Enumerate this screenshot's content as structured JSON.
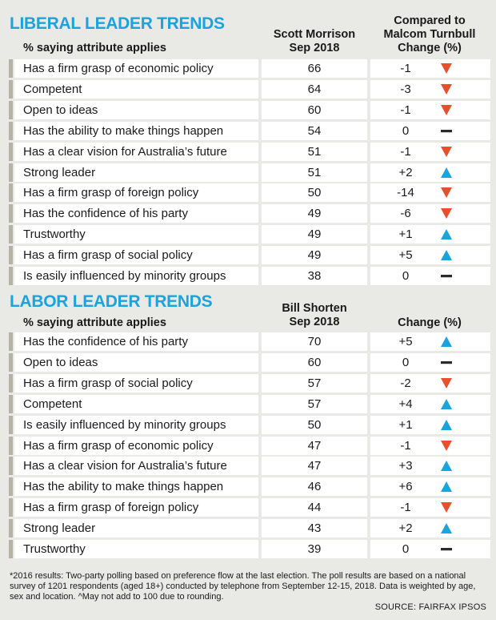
{
  "chart_data": [
    {
      "type": "table",
      "title": "LIBERAL LEADER TRENDS",
      "subtitle": "% saying attribute applies",
      "value_header_1": "Scott Morrison",
      "value_header_2": "Sep 2018",
      "change_header_1": "Compared to",
      "change_header_2": "Malcom Turnbull",
      "change_header_3": "Change (%)",
      "rows": [
        {
          "attribute": "Has a firm grasp of economic policy",
          "value": 66,
          "change": "-1",
          "dir": "down"
        },
        {
          "attribute": "Competent",
          "value": 64,
          "change": "-3",
          "dir": "down"
        },
        {
          "attribute": "Open to ideas",
          "value": 60,
          "change": "-1",
          "dir": "down"
        },
        {
          "attribute": "Has the ability to make things happen",
          "value": 54,
          "change": "0",
          "dir": "flat"
        },
        {
          "attribute": "Has a clear vision for Australia’s future",
          "value": 51,
          "change": "-1",
          "dir": "down"
        },
        {
          "attribute": "Strong leader",
          "value": 51,
          "change": "+2",
          "dir": "up"
        },
        {
          "attribute": "Has a firm grasp of foreign policy",
          "value": 50,
          "change": "-14",
          "dir": "down"
        },
        {
          "attribute": "Has the confidence of his party",
          "value": 49,
          "change": "-6",
          "dir": "down"
        },
        {
          "attribute": "Trustworthy",
          "value": 49,
          "change": "+1",
          "dir": "up"
        },
        {
          "attribute": "Has a firm grasp of social policy",
          "value": 49,
          "change": "+5",
          "dir": "up"
        },
        {
          "attribute": "Is easily influenced by minority groups",
          "value": 38,
          "change": "0",
          "dir": "flat"
        }
      ]
    },
    {
      "type": "table",
      "title": "LABOR LEADER TRENDS",
      "subtitle": "% saying attribute applies",
      "value_header_1": "Bill Shorten",
      "value_header_2": "Sep 2018",
      "change_header_1": "",
      "change_header_2": "",
      "change_header_3": "Change (%)",
      "rows": [
        {
          "attribute": "Has the confidence of his party",
          "value": 70,
          "change": "+5",
          "dir": "up"
        },
        {
          "attribute": "Open to ideas",
          "value": 60,
          "change": "0",
          "dir": "flat"
        },
        {
          "attribute": "Has a firm grasp of social policy",
          "value": 57,
          "change": "-2",
          "dir": "down"
        },
        {
          "attribute": "Competent",
          "value": 57,
          "change": "+4",
          "dir": "up"
        },
        {
          "attribute": "Is easily influenced by minority groups",
          "value": 50,
          "change": "+1",
          "dir": "up"
        },
        {
          "attribute": "Has a firm grasp of economic policy",
          "value": 47,
          "change": "-1",
          "dir": "down"
        },
        {
          "attribute": "Has a clear vision for Australia’s future",
          "value": 47,
          "change": "+3",
          "dir": "up"
        },
        {
          "attribute": "Has the ability to make things happen",
          "value": 46,
          "change": "+6",
          "dir": "up"
        },
        {
          "attribute": "Has a firm grasp of foreign policy",
          "value": 44,
          "change": "-1",
          "dir": "down"
        },
        {
          "attribute": "Strong leader",
          "value": 43,
          "change": "+2",
          "dir": "up"
        },
        {
          "attribute": "Trustworthy",
          "value": 39,
          "change": "0",
          "dir": "flat"
        }
      ]
    }
  ],
  "colors": {
    "title": "#1aa3dd",
    "up": "#1aa3dd",
    "down": "#e8502d",
    "flat": "#2a2a2a",
    "row_bar": "#b5b3a6",
    "background": "#e9e9e6"
  },
  "icons": {
    "up": "triangle-up-icon",
    "down": "triangle-down-icon",
    "flat": "dash-icon"
  },
  "footnote": "*2016 results: Two-party polling based on preference flow at the last election. The poll results are based on a national survey of 1201 respondents (aged 18+) conducted by telephone from September 12-15, 2018.  Data is weighted by age, sex and location.  ^May not add to 100 due to rounding.",
  "source": "SOURCE: FAIRFAX IPSOS"
}
